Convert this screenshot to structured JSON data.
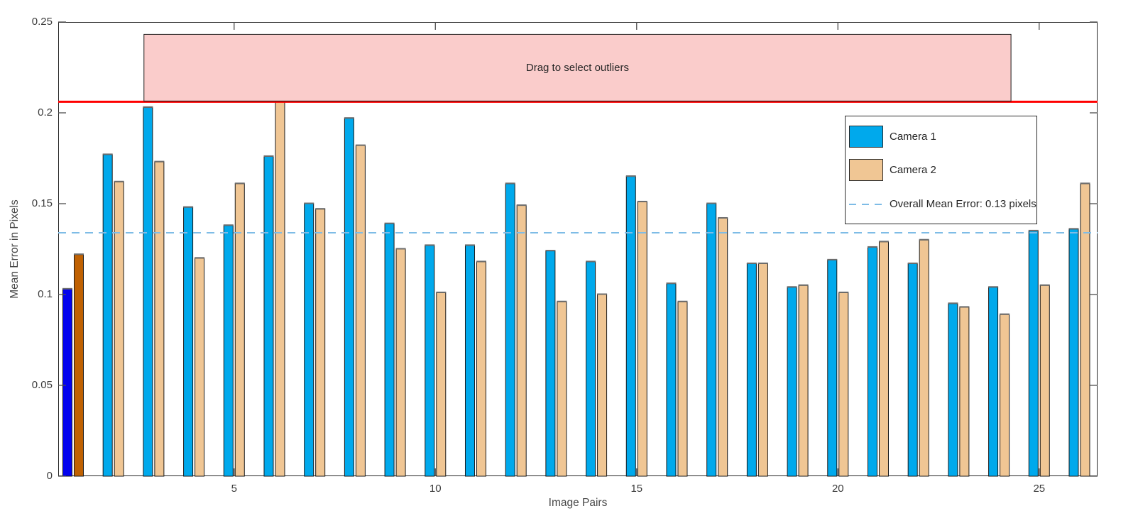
{
  "figure": {
    "background": "#FFFFFF"
  },
  "chart_data": {
    "type": "bar",
    "title": "",
    "xlabel": "Image Pairs",
    "ylabel": "Mean Error in Pixels",
    "categories": [
      1,
      2,
      3,
      4,
      5,
      6,
      7,
      8,
      9,
      10,
      11,
      12,
      13,
      14,
      15,
      16,
      17,
      18,
      19,
      20,
      21,
      22,
      23,
      24,
      25,
      26
    ],
    "x_ticks": [
      5,
      10,
      15,
      20,
      25
    ],
    "y_ticks": [
      0,
      0.05,
      0.1,
      0.15,
      0.2,
      0.25
    ],
    "xlim": [
      0.63,
      26.45
    ],
    "ylim": [
      0,
      0.25
    ],
    "grid": false,
    "series": [
      {
        "name": "Camera 1",
        "color": "#00A9EC",
        "selected_color": "#0202EE",
        "values": [
          0.103,
          0.177,
          0.203,
          0.148,
          0.138,
          0.176,
          0.15,
          0.197,
          0.139,
          0.127,
          0.127,
          0.161,
          0.124,
          0.118,
          0.165,
          0.106,
          0.15,
          0.117,
          0.104,
          0.119,
          0.126,
          0.117,
          0.095,
          0.104,
          0.135,
          0.136
        ]
      },
      {
        "name": "Camera 2",
        "color": "#F0C694",
        "selected_color": "#C06102",
        "values": [
          0.122,
          0.162,
          0.173,
          0.12,
          0.161,
          0.206,
          0.147,
          0.182,
          0.125,
          0.101,
          0.118,
          0.149,
          0.096,
          0.1,
          0.151,
          0.096,
          0.142,
          0.117,
          0.105,
          0.101,
          0.129,
          0.13,
          0.093,
          0.089,
          0.105,
          0.161
        ]
      }
    ],
    "selected_pair": 1,
    "bar_edge_color": "#1A1A1A",
    "bar_cap_color": "#6E6E6E",
    "mean_line": {
      "value": 0.134,
      "label": "Overall Mean Error: 0.13 pixels",
      "color": "#7EBCE6"
    },
    "threshold_line": {
      "value": 0.2065,
      "color": "#FF0000"
    },
    "selection_box": {
      "label": "Drag to select outliers",
      "x_from": 2.76,
      "x_to": 24.3,
      "y_from": 0.2065,
      "y_to": 0.2432,
      "fill": "#FACCCB",
      "border": "#1A1A1A"
    },
    "legend": {
      "position": "northeast",
      "entries": [
        "Camera 1",
        "Camera 2",
        "Overall Mean Error: 0.13 pixels"
      ]
    },
    "axes_color": "#262626",
    "tick_color": "#4D4D4D"
  }
}
